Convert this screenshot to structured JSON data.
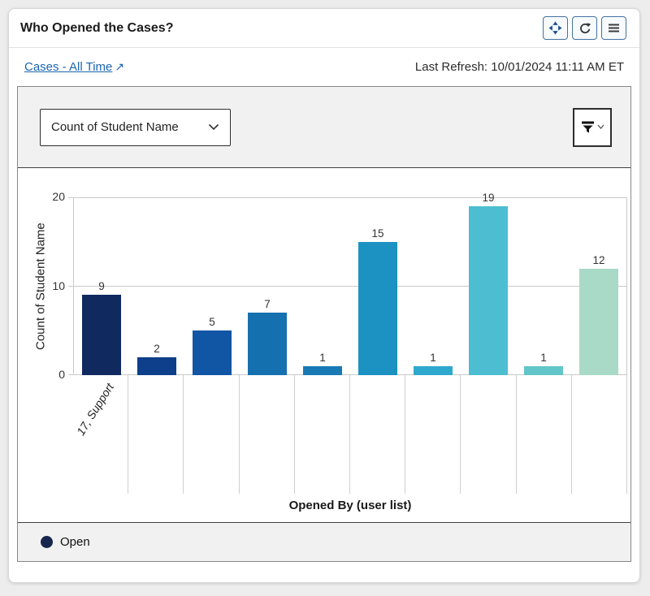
{
  "card": {
    "header": {
      "title": "Who Opened the Cases?",
      "buttons": [
        {
          "name": "move",
          "icon": "move-icon"
        },
        {
          "name": "refresh",
          "icon": "refresh-icon"
        },
        {
          "name": "menu",
          "icon": "hamburger-icon"
        }
      ]
    },
    "subheader": {
      "link_label": "Cases - All Time",
      "external_arrow": "↗",
      "last_refresh": "Last Refresh: 10/01/2024 11:11 AM ET"
    },
    "toolbar": {
      "measure_dropdown_value": "Count of Student Name",
      "filter_icon": "filter-funnel-icon"
    }
  },
  "colors": {
    "link": "#1b65b0",
    "header_button_border": "#44719f",
    "move_icon": "#1b4d8f",
    "legend_dot": "#17264f"
  },
  "chart_data": {
    "type": "bar",
    "title": "Who Opened the Cases?",
    "xlabel": "Opened By (user list)",
    "ylabel": "Count of Student Name",
    "ylim": [
      0,
      20
    ],
    "yticks": [
      0,
      10,
      20
    ],
    "grid": true,
    "categories": [
      "17, Support",
      "",
      "",
      "",
      "",
      "",
      "",
      "",
      "",
      ""
    ],
    "values": [
      9,
      2,
      5,
      7,
      1,
      15,
      1,
      19,
      1,
      12
    ],
    "bar_colors": [
      "#102a60",
      "#0e3f8a",
      "#1155a5",
      "#1570af",
      "#1979b4",
      "#1b92c1",
      "#2ea9cd",
      "#4dbed2",
      "#62c5c9",
      "#a8dac7"
    ],
    "legend_position": "bottom",
    "legend": [
      {
        "label": "Open",
        "color": "#17264f"
      }
    ]
  }
}
